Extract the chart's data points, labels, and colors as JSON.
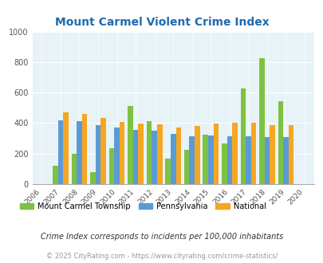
{
  "title": "Mount Carmel Violent Crime Index",
  "years": [
    2006,
    2007,
    2008,
    2009,
    2010,
    2011,
    2012,
    2013,
    2014,
    2015,
    2016,
    2017,
    2018,
    2019,
    2020
  ],
  "township": [
    null,
    120,
    200,
    80,
    235,
    510,
    415,
    165,
    225,
    325,
    265,
    625,
    825,
    545,
    null
  ],
  "pennsylvania": [
    null,
    420,
    415,
    385,
    370,
    355,
    350,
    330,
    315,
    320,
    315,
    315,
    310,
    310,
    null
  ],
  "national": [
    null,
    470,
    460,
    435,
    408,
    395,
    393,
    370,
    380,
    395,
    400,
    400,
    385,
    385,
    null
  ],
  "colors": {
    "township": "#7DC242",
    "pennsylvania": "#5B9BD5",
    "national": "#F5A623"
  },
  "ylim": [
    0,
    1000
  ],
  "yticks": [
    0,
    200,
    400,
    600,
    800,
    1000
  ],
  "bg_color": "#E8F3F8",
  "legend_labels": [
    "Mount Carmel Township",
    "Pennsylvania",
    "National"
  ],
  "note": "Crime Index corresponds to incidents per 100,000 inhabitants",
  "footer": "© 2025 CityRating.com - https://www.cityrating.com/crime-statistics/",
  "title_color": "#1F6BB0",
  "note_color": "#333333",
  "footer_color": "#999999"
}
